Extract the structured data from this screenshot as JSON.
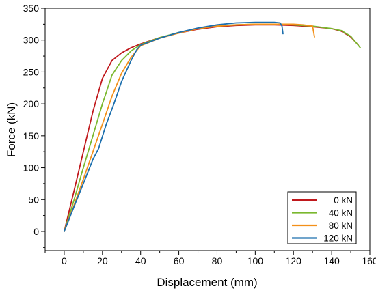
{
  "chart_data": {
    "type": "line",
    "xlabel": "Displacement (mm)",
    "ylabel": "Force (kN)",
    "xlim": [
      -10,
      160
    ],
    "ylim": [
      -30,
      350
    ],
    "xticks": [
      0,
      20,
      40,
      60,
      80,
      100,
      120,
      140,
      160
    ],
    "yticks": [
      0,
      50,
      100,
      150,
      200,
      250,
      300,
      350
    ],
    "grid": false,
    "legend_position": "bottom-right",
    "series": [
      {
        "name": "0 kN",
        "color": "#c0181c",
        "points": [
          [
            0,
            0
          ],
          [
            5,
            62
          ],
          [
            10,
            125
          ],
          [
            15,
            188
          ],
          [
            20,
            240
          ],
          [
            25,
            268
          ],
          [
            30,
            280
          ],
          [
            35,
            288
          ],
          [
            40,
            294
          ],
          [
            50,
            304
          ],
          [
            60,
            311
          ],
          [
            70,
            317
          ],
          [
            80,
            321
          ],
          [
            90,
            323
          ],
          [
            100,
            324
          ],
          [
            110,
            324
          ],
          [
            120,
            323
          ],
          [
            130,
            321
          ],
          [
            140,
            318
          ],
          [
            145,
            314
          ],
          [
            150,
            305
          ],
          [
            154,
            292
          ]
        ]
      },
      {
        "name": "40 kN",
        "color": "#7ab82e",
        "points": [
          [
            0,
            0
          ],
          [
            5,
            48
          ],
          [
            10,
            100
          ],
          [
            15,
            150
          ],
          [
            20,
            200
          ],
          [
            25,
            245
          ],
          [
            30,
            268
          ],
          [
            35,
            283
          ],
          [
            40,
            293
          ],
          [
            50,
            304
          ],
          [
            60,
            312
          ],
          [
            70,
            318
          ],
          [
            80,
            322
          ],
          [
            90,
            324
          ],
          [
            100,
            325
          ],
          [
            110,
            325
          ],
          [
            120,
            324
          ],
          [
            130,
            322
          ],
          [
            140,
            318
          ],
          [
            145,
            315
          ],
          [
            150,
            306
          ],
          [
            155,
            288
          ]
        ]
      },
      {
        "name": "80 kN",
        "color": "#f39019",
        "points": [
          [
            0,
            0
          ],
          [
            5,
            40
          ],
          [
            10,
            82
          ],
          [
            15,
            125
          ],
          [
            20,
            168
          ],
          [
            25,
            212
          ],
          [
            30,
            248
          ],
          [
            35,
            273
          ],
          [
            40,
            291
          ],
          [
            50,
            303
          ],
          [
            60,
            311
          ],
          [
            70,
            318
          ],
          [
            80,
            322
          ],
          [
            90,
            324
          ],
          [
            100,
            325
          ],
          [
            110,
            325
          ],
          [
            120,
            325
          ],
          [
            125,
            324
          ],
          [
            130,
            322
          ],
          [
            131,
            305
          ]
        ]
      },
      {
        "name": "120 kN",
        "color": "#1c6fae",
        "points": [
          [
            0,
            0
          ],
          [
            5,
            38
          ],
          [
            10,
            75
          ],
          [
            15,
            113
          ],
          [
            18,
            130
          ],
          [
            22,
            168
          ],
          [
            26,
            200
          ],
          [
            30,
            235
          ],
          [
            35,
            268
          ],
          [
            38,
            285
          ],
          [
            40,
            292
          ],
          [
            50,
            303
          ],
          [
            60,
            312
          ],
          [
            70,
            319
          ],
          [
            80,
            324
          ],
          [
            90,
            327
          ],
          [
            100,
            328
          ],
          [
            110,
            328
          ],
          [
            113,
            327
          ],
          [
            114,
            322
          ],
          [
            114.5,
            310
          ]
        ]
      }
    ]
  }
}
